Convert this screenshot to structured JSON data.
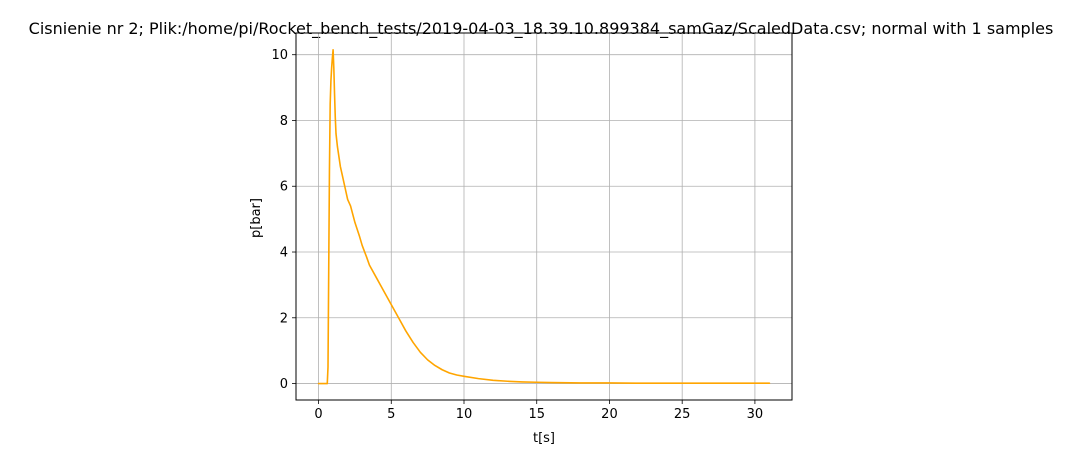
{
  "chart_data": {
    "type": "line",
    "title": "Cisnienie nr 2; Plik:/home/pi/Rocket_bench_tests/2019-04-03_18.39.10.899384_samGaz/ScaledData.csv; normal with 1 samples",
    "xlabel": "t[s]",
    "ylabel": "p[bar]",
    "xlim": [
      -1.55,
      32.55
    ],
    "ylim": [
      -0.5,
      10.66
    ],
    "xticks": [
      0,
      5,
      10,
      15,
      20,
      25,
      30
    ],
    "yticks": [
      0,
      2,
      4,
      6,
      8,
      10
    ],
    "grid": true,
    "legend": "none",
    "series": [
      {
        "color": "#ffa500",
        "x": [
          0,
          0.6,
          0.65,
          0.7,
          0.75,
          0.8,
          0.85,
          0.9,
          0.95,
          1.0,
          1.05,
          1.1,
          1.15,
          1.2,
          1.3,
          1.4,
          1.5,
          1.6,
          1.8,
          2.0,
          2.2,
          2.5,
          2.8,
          3.0,
          3.3,
          3.5,
          4.0,
          4.5,
          5.0,
          5.5,
          6.0,
          6.5,
          7.0,
          7.5,
          8.0,
          8.5,
          9.0,
          9.5,
          10.0,
          11.0,
          12.0,
          13.0,
          14.0,
          15.0,
          16.0,
          18.0,
          20.0,
          22.0,
          24.0,
          26.0,
          28.0,
          31.0
        ],
        "y": [
          0,
          0,
          0.5,
          3.5,
          6.5,
          8.5,
          9.2,
          9.6,
          9.9,
          10.15,
          9.6,
          8.8,
          8.1,
          7.6,
          7.2,
          6.9,
          6.6,
          6.4,
          6.0,
          5.6,
          5.4,
          4.9,
          4.5,
          4.2,
          3.85,
          3.6,
          3.2,
          2.8,
          2.4,
          2.0,
          1.6,
          1.25,
          0.95,
          0.72,
          0.55,
          0.42,
          0.32,
          0.26,
          0.22,
          0.15,
          0.1,
          0.07,
          0.05,
          0.04,
          0.03,
          0.02,
          0.02,
          0.01,
          0.01,
          0.01,
          0.01,
          0.01
        ]
      }
    ]
  }
}
